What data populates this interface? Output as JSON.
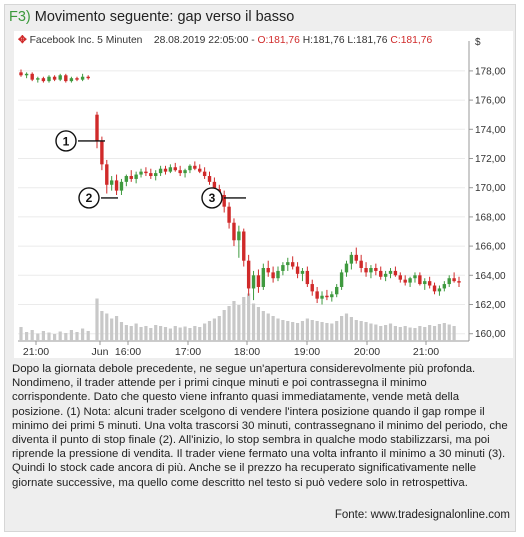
{
  "title": {
    "fig": "F3)",
    "text": "Movimento seguente: gap verso il basso"
  },
  "header": {
    "symbol": "Facebook Inc. 5 Minuten",
    "datetime": "28.08.2019 22:05:00",
    "open": "O:181,76",
    "high": "H:181,76",
    "low": "L:181,76",
    "close": "C:181,76"
  },
  "paragraph": "Dopo la giornata debole precedente, ne segue un'apertura considerevolmente più profonda. Nondimeno, il trader attende per i primi cinque minuti e poi contrassegna il minimo corrispondente. Dato che questo viene infranto quasi immediatamente, vende metà della posizione. (1) Nota: alcuni trader scelgono di vendere l'intera posizione quando il gap rompe il minimo dei primi 5 minuti. Una volta trascorsi 30 minuti, contrassegnano il minimo del periodo, che diventa il punto di stop finale (2). All'inizio, lo stop sembra in qualche modo stabilizzarsi, ma poi riprende la pressione di vendita. Il trader viene fermato una volta infranto il minimo a 30 minuti (3). Quindi lo stock cade ancora di più. Anche se il prezzo ha recuperato significativamente nelle giornate successive, ma quello come descritto nel testo si può vedere solo in retrospettiva.",
  "source": "Fonte: www.tradesignalonline.com",
  "colors": {
    "up": "#3f9a3f",
    "down": "#d02a2a",
    "volume": "#c8c8c8",
    "accent": "#3c9a3c"
  },
  "chart_data": {
    "type": "candlestick",
    "currency_label": "$",
    "ylim": [
      159.5,
      179.5
    ],
    "y_ticks": [
      "178,00",
      "176,00",
      "174,00",
      "172,00",
      "170,00",
      "168,00",
      "166,00",
      "164,00",
      "162,00",
      "160,00"
    ],
    "x_ticks": [
      "21:00",
      "Jun",
      "16:00",
      "17:00",
      "18:00",
      "19:00",
      "20:00",
      "21:00"
    ],
    "markers": [
      {
        "label": "1",
        "level": 173.2
      },
      {
        "label": "2",
        "level": 169.3
      },
      {
        "label": "3",
        "level": 169.3
      }
    ],
    "candles": [
      [
        177.9,
        178.1,
        177.6,
        177.7
      ],
      [
        177.7,
        177.9,
        177.5,
        177.8
      ],
      [
        177.8,
        177.9,
        177.3,
        177.4
      ],
      [
        177.4,
        177.6,
        177.2,
        177.5
      ],
      [
        177.5,
        177.6,
        177.2,
        177.3
      ],
      [
        177.3,
        177.7,
        177.2,
        177.6
      ],
      [
        177.6,
        177.7,
        177.3,
        177.4
      ],
      [
        177.4,
        177.8,
        177.3,
        177.7
      ],
      [
        177.7,
        177.8,
        177.2,
        177.3
      ],
      [
        177.3,
        177.6,
        177.2,
        177.5
      ],
      [
        177.5,
        177.6,
        177.3,
        177.4
      ],
      [
        177.4,
        177.8,
        177.3,
        177.6
      ],
      [
        177.6,
        177.7,
        177.4,
        177.5
      ],
      [
        175.0,
        175.2,
        172.7,
        173.2
      ],
      [
        173.2,
        173.5,
        171.2,
        171.6
      ],
      [
        171.6,
        171.9,
        169.6,
        170.2
      ],
      [
        170.2,
        170.8,
        169.8,
        170.5
      ],
      [
        170.5,
        170.9,
        169.5,
        169.8
      ],
      [
        169.8,
        170.6,
        169.5,
        170.4
      ],
      [
        170.4,
        170.9,
        170.1,
        170.8
      ],
      [
        170.8,
        171.2,
        170.4,
        170.6
      ],
      [
        170.6,
        171.1,
        170.3,
        170.9
      ],
      [
        170.9,
        171.3,
        170.7,
        171.1
      ],
      [
        171.1,
        171.4,
        170.8,
        171.0
      ],
      [
        171.0,
        171.3,
        170.6,
        170.8
      ],
      [
        170.8,
        171.2,
        170.5,
        171.0
      ],
      [
        171.0,
        171.5,
        170.8,
        171.3
      ],
      [
        171.3,
        171.5,
        170.9,
        171.1
      ],
      [
        171.1,
        171.6,
        171.0,
        171.4
      ],
      [
        171.4,
        171.7,
        171.1,
        171.2
      ],
      [
        171.2,
        171.5,
        170.8,
        171.0
      ],
      [
        171.0,
        171.3,
        170.7,
        171.2
      ],
      [
        171.2,
        171.6,
        171.0,
        171.5
      ],
      [
        171.5,
        171.8,
        171.2,
        171.3
      ],
      [
        171.3,
        171.6,
        171.0,
        171.1
      ],
      [
        171.1,
        171.4,
        170.6,
        170.8
      ],
      [
        170.8,
        171.1,
        170.2,
        170.4
      ],
      [
        170.4,
        170.7,
        169.6,
        169.9
      ],
      [
        169.9,
        170.2,
        169.1,
        169.5
      ],
      [
        169.5,
        169.8,
        168.3,
        168.7
      ],
      [
        168.7,
        169.0,
        167.2,
        167.6
      ],
      [
        167.6,
        167.9,
        166.0,
        166.4
      ],
      [
        166.4,
        167.4,
        165.2,
        167.0
      ],
      [
        167.0,
        167.2,
        164.6,
        165.0
      ],
      [
        165.0,
        165.4,
        162.6,
        163.1
      ],
      [
        163.1,
        164.3,
        162.3,
        164.0
      ],
      [
        164.0,
        164.4,
        162.8,
        163.2
      ],
      [
        163.2,
        164.8,
        163.0,
        164.5
      ],
      [
        164.5,
        165.0,
        163.9,
        164.2
      ],
      [
        164.2,
        164.6,
        163.5,
        163.8
      ],
      [
        163.8,
        164.6,
        163.6,
        164.3
      ],
      [
        164.3,
        164.9,
        164.0,
        164.7
      ],
      [
        164.7,
        165.2,
        164.3,
        164.9
      ],
      [
        164.9,
        165.3,
        164.4,
        164.6
      ],
      [
        164.6,
        164.9,
        163.8,
        164.1
      ],
      [
        164.1,
        164.5,
        163.6,
        164.3
      ],
      [
        164.3,
        164.6,
        163.2,
        163.4
      ],
      [
        163.4,
        163.7,
        162.6,
        162.9
      ],
      [
        162.9,
        163.2,
        162.1,
        162.4
      ],
      [
        162.4,
        162.9,
        162.0,
        162.6
      ],
      [
        162.6,
        163.0,
        162.3,
        162.5
      ],
      [
        162.5,
        162.9,
        162.2,
        162.7
      ],
      [
        162.7,
        163.4,
        162.5,
        163.2
      ],
      [
        163.2,
        164.4,
        163.0,
        164.2
      ],
      [
        164.2,
        165.0,
        163.9,
        164.8
      ],
      [
        164.8,
        165.6,
        164.4,
        165.4
      ],
      [
        165.4,
        165.9,
        164.8,
        165.0
      ],
      [
        165.0,
        165.4,
        164.2,
        164.5
      ],
      [
        164.5,
        164.9,
        163.9,
        164.2
      ],
      [
        164.2,
        164.7,
        163.8,
        164.5
      ],
      [
        164.5,
        164.8,
        164.0,
        164.3
      ],
      [
        164.3,
        164.6,
        163.7,
        163.9
      ],
      [
        163.9,
        164.3,
        163.6,
        164.1
      ],
      [
        164.1,
        164.5,
        163.8,
        164.3
      ],
      [
        164.3,
        164.6,
        163.9,
        164.0
      ],
      [
        164.0,
        164.2,
        163.5,
        163.7
      ],
      [
        163.7,
        164.0,
        163.3,
        163.5
      ],
      [
        163.5,
        163.9,
        163.2,
        163.8
      ],
      [
        163.8,
        164.2,
        163.5,
        164.0
      ],
      [
        164.0,
        164.2,
        163.3,
        163.4
      ],
      [
        163.4,
        163.8,
        163.0,
        163.6
      ],
      [
        163.6,
        163.9,
        163.1,
        163.3
      ],
      [
        163.3,
        163.5,
        162.7,
        162.9
      ],
      [
        162.9,
        163.3,
        162.6,
        163.1
      ],
      [
        163.1,
        163.6,
        162.9,
        163.4
      ],
      [
        163.4,
        164.0,
        163.2,
        163.8
      ],
      [
        163.8,
        164.2,
        163.5,
        163.6
      ],
      [
        163.6,
        163.9,
        163.2,
        163.5
      ]
    ],
    "volume": [
      0.28,
      0.18,
      0.22,
      0.15,
      0.2,
      0.17,
      0.14,
      0.19,
      0.16,
      0.22,
      0.18,
      0.25,
      0.2,
      0.85,
      0.6,
      0.55,
      0.45,
      0.5,
      0.38,
      0.32,
      0.3,
      0.35,
      0.28,
      0.3,
      0.26,
      0.32,
      0.3,
      0.28,
      0.25,
      0.3,
      0.27,
      0.29,
      0.26,
      0.3,
      0.28,
      0.35,
      0.4,
      0.45,
      0.5,
      0.62,
      0.7,
      0.8,
      0.72,
      0.88,
      0.95,
      0.75,
      0.68,
      0.6,
      0.55,
      0.5,
      0.45,
      0.42,
      0.4,
      0.38,
      0.36,
      0.4,
      0.45,
      0.42,
      0.4,
      0.38,
      0.36,
      0.35,
      0.4,
      0.5,
      0.55,
      0.48,
      0.42,
      0.4,
      0.38,
      0.35,
      0.33,
      0.3,
      0.32,
      0.35,
      0.3,
      0.28,
      0.3,
      0.27,
      0.26,
      0.3,
      0.28,
      0.32,
      0.3,
      0.34,
      0.36,
      0.33,
      0.3
    ]
  }
}
